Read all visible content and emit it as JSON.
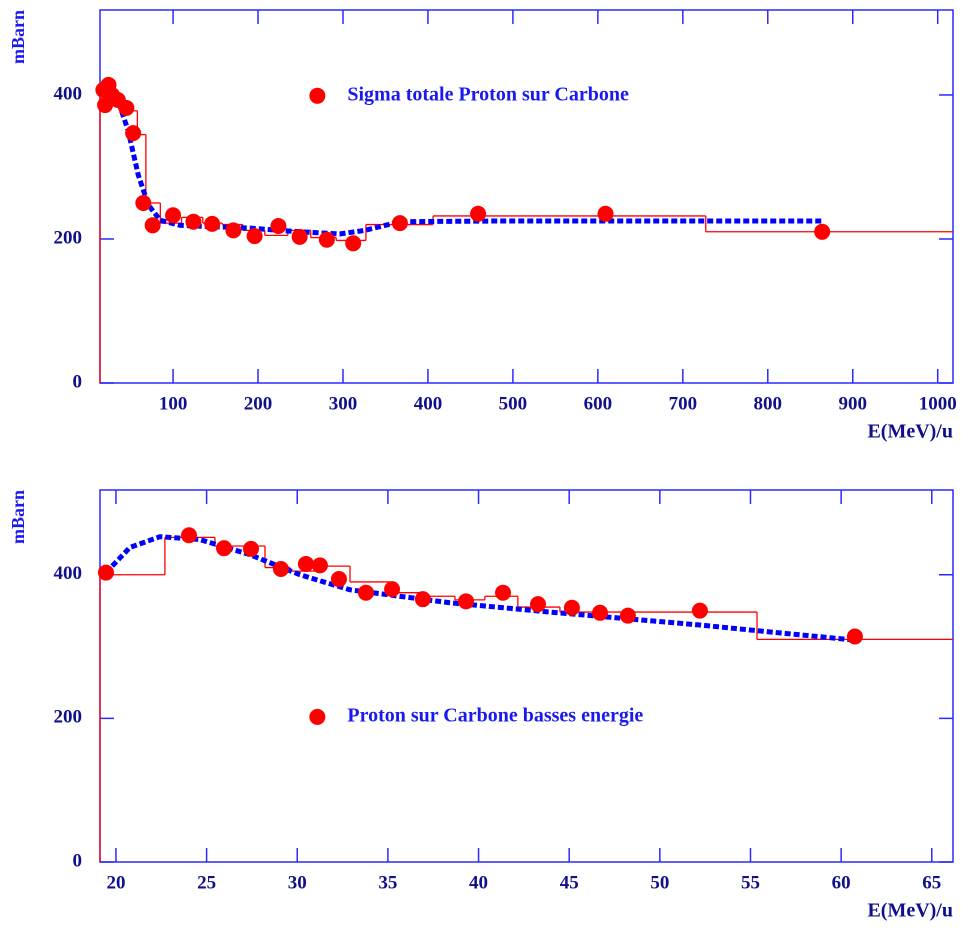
{
  "chart_data": [
    {
      "type": "scatter",
      "ylabel": "mBarn",
      "xlabel": "E(MeV)/u",
      "xlim": [
        14,
        1018
      ],
      "ylim": [
        0,
        518
      ],
      "xticks": [
        100,
        200,
        300,
        400,
        500,
        600,
        700,
        800,
        900,
        1000
      ],
      "yticks": [
        0,
        200,
        400
      ],
      "legend": "upper center",
      "series": [
        {
          "name": "Sigma totale Proton sur Carbone",
          "color": "#ff0000",
          "x": [
            18,
            24,
            20,
            28,
            35,
            45,
            53,
            65,
            76,
            100,
            124,
            146,
            171,
            196,
            224,
            249,
            281,
            312,
            367,
            459,
            609,
            864
          ],
          "values": [
            407,
            414,
            386,
            400,
            393,
            382,
            347,
            250,
            219,
            233,
            224,
            221,
            212,
            204,
            218,
            203,
            199,
            194,
            222,
            235,
            235,
            210
          ]
        }
      ],
      "histogram": {
        "color": "#ff0000",
        "bins": [
          14,
          22,
          32,
          42,
          50,
          58,
          68,
          85,
          110,
          135,
          158,
          182,
          208,
          235,
          262,
          292,
          327,
          406,
          727,
          1018
        ],
        "values": [
          405,
          412,
          395,
          385,
          378,
          345,
          250,
          222,
          230,
          222,
          220,
          212,
          205,
          212,
          202,
          198,
          220,
          232,
          210
        ]
      },
      "fit": {
        "color": "#0000ff",
        "x": [
          14,
          26,
          35,
          47,
          59,
          71,
          85,
          108,
          191,
          249,
          296,
          326,
          367,
          485,
          720,
          864
        ],
        "values": [
          414,
          407,
          393,
          351,
          289,
          247,
          226,
          219,
          215,
          210,
          207,
          212,
          224,
          225,
          225,
          225
        ]
      }
    },
    {
      "type": "scatter",
      "ylabel": "mBarn",
      "xlabel": "E(MeV)/u",
      "xlim": [
        19.12,
        66.17
      ],
      "ylim": [
        0,
        518
      ],
      "xticks": [
        20,
        25,
        30,
        35,
        40,
        45,
        50,
        55,
        60,
        65
      ],
      "yticks": [
        0,
        200,
        400
      ],
      "legend": "center",
      "series": [
        {
          "name": "Proton sur Carbone basses energie",
          "color": "#ff0000",
          "x": [
            19.45,
            24.03,
            25.96,
            27.45,
            29.1,
            30.48,
            31.25,
            32.3,
            33.79,
            35.23,
            36.93,
            39.31,
            41.35,
            43.28,
            45.15,
            46.7,
            48.24,
            52.21,
            60.76
          ],
          "values": [
            403,
            455,
            437,
            436,
            408,
            415,
            413,
            394,
            375,
            380,
            366,
            363,
            375,
            359,
            354,
            347,
            343,
            350,
            314
          ]
        }
      ],
      "histogram": {
        "color": "#ff0000",
        "bins": [
          19.12,
          22.7,
          25.46,
          28.22,
          29.6,
          31.14,
          32.91,
          35.11,
          37.04,
          38.7,
          40.35,
          42.17,
          44.49,
          55.36,
          66.17
        ],
        "values": [
          400,
          452,
          440,
          410,
          405,
          412,
          390,
          375,
          370,
          365,
          370,
          355,
          348,
          310
        ]
      },
      "fit": {
        "color": "#0000ff",
        "x": [
          19.45,
          20.77,
          22.43,
          24.63,
          27.39,
          30.15,
          32.91,
          38.42,
          43.94,
          52.21,
          56.62,
          60.76
        ],
        "values": [
          403,
          438,
          453,
          449,
          428,
          400,
          379,
          361,
          348,
          330,
          319,
          309
        ]
      }
    }
  ]
}
